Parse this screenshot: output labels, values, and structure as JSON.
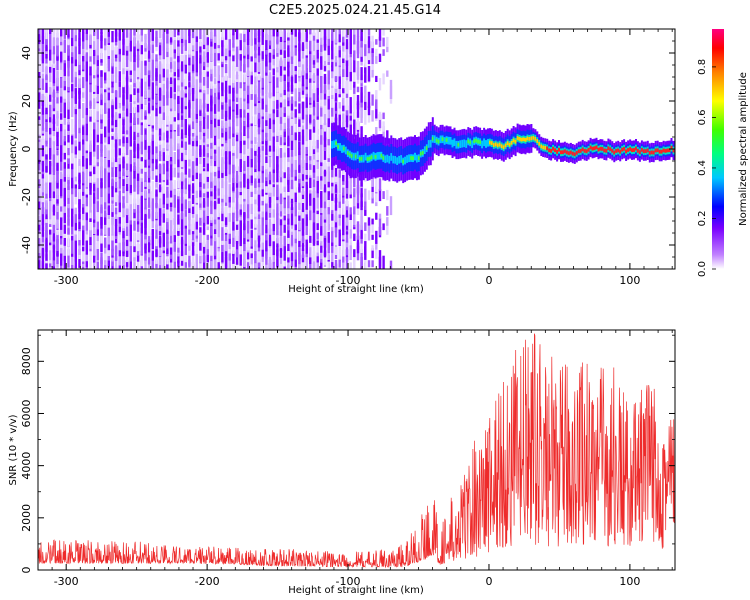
{
  "title": "C2E5.2025.024.21.45.G14",
  "chart_data": [
    {
      "type": "heatmap",
      "name": "spectrogram",
      "xlabel": "Height of straight line (km)",
      "ylabel": "Frequency (Hz)",
      "xlim": [
        -320,
        132
      ],
      "ylim": [
        -50,
        50
      ],
      "x_ticks": [
        -300,
        -200,
        -100,
        0,
        100
      ],
      "y_ticks": [
        -40,
        -20,
        0,
        20,
        40
      ],
      "noise_region_x": [
        -320,
        -80
      ],
      "signal_start_x": -112,
      "signal_ridge": [
        {
          "x": -110,
          "y": 2
        },
        {
          "x": -100,
          "y": -2
        },
        {
          "x": -90,
          "y": -4
        },
        {
          "x": -80,
          "y": -3
        },
        {
          "x": -70,
          "y": -4
        },
        {
          "x": -60,
          "y": -5
        },
        {
          "x": -50,
          "y": -3
        },
        {
          "x": -40,
          "y": 4
        },
        {
          "x": -30,
          "y": 3
        },
        {
          "x": -20,
          "y": 2
        },
        {
          "x": -10,
          "y": 3
        },
        {
          "x": 0,
          "y": 2
        },
        {
          "x": 10,
          "y": 1
        },
        {
          "x": 20,
          "y": 4
        },
        {
          "x": 30,
          "y": 5
        },
        {
          "x": 40,
          "y": 0
        },
        {
          "x": 50,
          "y": -1
        },
        {
          "x": 60,
          "y": -2
        },
        {
          "x": 70,
          "y": 0
        },
        {
          "x": 80,
          "y": 0
        },
        {
          "x": 90,
          "y": -1
        },
        {
          "x": 100,
          "y": 0
        },
        {
          "x": 110,
          "y": -1
        },
        {
          "x": 120,
          "y": -1
        },
        {
          "x": 130,
          "y": 0
        }
      ],
      "colorbar": {
        "label": "Normalized spectral amplitude",
        "range": [
          0,
          0.95
        ],
        "ticks": [
          "0.0",
          "0.2",
          "0.4",
          "0.6",
          "0.8"
        ],
        "colors": [
          "#ffffff",
          "#8800ff",
          "#0000ff",
          "#00ffff",
          "#00ff00",
          "#ffff00",
          "#ff8800",
          "#ff0000",
          "#ff0088"
        ]
      }
    },
    {
      "type": "line",
      "name": "snr",
      "xlabel": "Height of straight line (km)",
      "ylabel": "SNR (10 * v/v)",
      "xlim": [
        -320,
        132
      ],
      "ylim": [
        0,
        9200
      ],
      "x_ticks": [
        -300,
        -200,
        -100,
        0,
        100
      ],
      "y_ticks": [
        0,
        2000,
        4000,
        6000,
        8000
      ],
      "color": "#ee2b2b",
      "envelope": [
        {
          "x": -320,
          "low": 250,
          "high": 1200
        },
        {
          "x": -250,
          "low": 250,
          "high": 1100
        },
        {
          "x": -200,
          "low": 250,
          "high": 900
        },
        {
          "x": -150,
          "low": 150,
          "high": 850
        },
        {
          "x": -100,
          "low": 120,
          "high": 700
        },
        {
          "x": -80,
          "low": 120,
          "high": 750
        },
        {
          "x": -60,
          "low": 100,
          "high": 1100
        },
        {
          "x": -46,
          "low": 400,
          "high": 2400
        },
        {
          "x": -40,
          "low": 600,
          "high": 3100
        },
        {
          "x": -35,
          "low": 200,
          "high": 1800
        },
        {
          "x": -30,
          "low": 300,
          "high": 2600
        },
        {
          "x": -20,
          "low": 400,
          "high": 3400
        },
        {
          "x": -10,
          "low": 500,
          "high": 5200
        },
        {
          "x": 0,
          "low": 600,
          "high": 6300
        },
        {
          "x": 10,
          "low": 700,
          "high": 7800
        },
        {
          "x": 20,
          "low": 900,
          "high": 8600
        },
        {
          "x": 30,
          "low": 1000,
          "high": 9200
        },
        {
          "x": 40,
          "low": 900,
          "high": 8600
        },
        {
          "x": 50,
          "low": 900,
          "high": 7700
        },
        {
          "x": 60,
          "low": 900,
          "high": 8300
        },
        {
          "x": 70,
          "low": 1000,
          "high": 8600
        },
        {
          "x": 80,
          "low": 900,
          "high": 8000
        },
        {
          "x": 90,
          "low": 800,
          "high": 8000
        },
        {
          "x": 100,
          "low": 900,
          "high": 6200
        },
        {
          "x": 110,
          "low": 900,
          "high": 7300
        },
        {
          "x": 120,
          "low": 800,
          "high": 7700
        },
        {
          "x": 132,
          "low": 800,
          "high": 6600
        }
      ]
    }
  ]
}
